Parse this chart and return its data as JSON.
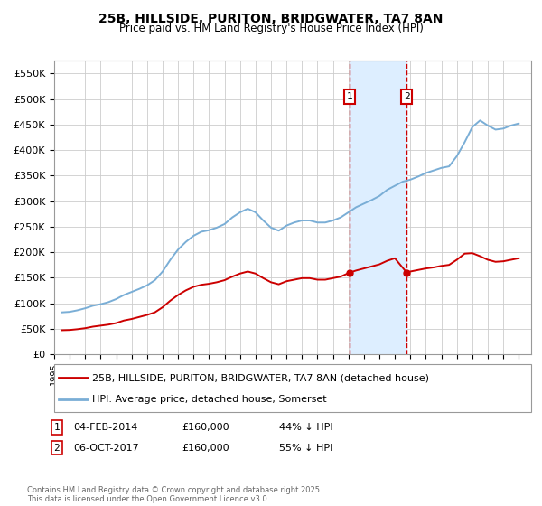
{
  "title": "25B, HILLSIDE, PURITON, BRIDGWATER, TA7 8AN",
  "subtitle": "Price paid vs. HM Land Registry's House Price Index (HPI)",
  "ylim": [
    0,
    575000
  ],
  "xlim_start": 1995.0,
  "xlim_end": 2025.8,
  "transaction1_date": 2014.09,
  "transaction1_price": 160000,
  "transaction2_date": 2017.76,
  "transaction2_price": 160000,
  "legend_red": "25B, HILLSIDE, PURITON, BRIDGWATER, TA7 8AN (detached house)",
  "legend_blue": "HPI: Average price, detached house, Somerset",
  "copyright": "Contains HM Land Registry data © Crown copyright and database right 2025.\nThis data is licensed under the Open Government Licence v3.0.",
  "red_color": "#cc0000",
  "blue_color": "#7aaed6",
  "shade_color": "#ddeeff",
  "grid_color": "#cccccc",
  "background_color": "#ffffff",
  "hpi_x": [
    1995.5,
    1996.0,
    1996.5,
    1997.0,
    1997.5,
    1998.0,
    1998.5,
    1999.0,
    1999.5,
    2000.0,
    2000.5,
    2001.0,
    2001.5,
    2002.0,
    2002.5,
    2003.0,
    2003.5,
    2004.0,
    2004.5,
    2005.0,
    2005.5,
    2006.0,
    2006.5,
    2007.0,
    2007.5,
    2008.0,
    2008.5,
    2009.0,
    2009.5,
    2010.0,
    2010.5,
    2011.0,
    2011.5,
    2012.0,
    2012.5,
    2013.0,
    2013.5,
    2014.0,
    2014.5,
    2015.0,
    2015.5,
    2016.0,
    2016.5,
    2017.0,
    2017.5,
    2018.0,
    2018.5,
    2019.0,
    2019.5,
    2020.0,
    2020.5,
    2021.0,
    2021.5,
    2022.0,
    2022.5,
    2023.0,
    2023.5,
    2024.0,
    2024.5,
    2025.0
  ],
  "hpi_y": [
    82000,
    83000,
    86000,
    90000,
    95000,
    98000,
    102000,
    108000,
    116000,
    122000,
    128000,
    135000,
    145000,
    162000,
    185000,
    205000,
    220000,
    232000,
    240000,
    243000,
    248000,
    255000,
    268000,
    278000,
    285000,
    278000,
    262000,
    248000,
    242000,
    252000,
    258000,
    262000,
    262000,
    258000,
    258000,
    262000,
    268000,
    278000,
    288000,
    295000,
    302000,
    310000,
    322000,
    330000,
    338000,
    342000,
    348000,
    355000,
    360000,
    365000,
    368000,
    388000,
    415000,
    445000,
    458000,
    448000,
    440000,
    442000,
    448000,
    452000
  ],
  "red_x": [
    1995.5,
    1996.0,
    1996.5,
    1997.0,
    1997.5,
    1998.0,
    1998.5,
    1999.0,
    1999.5,
    2000.0,
    2000.5,
    2001.0,
    2001.5,
    2002.0,
    2002.5,
    2003.0,
    2003.5,
    2004.0,
    2004.5,
    2005.0,
    2005.5,
    2006.0,
    2006.5,
    2007.0,
    2007.5,
    2008.0,
    2008.5,
    2009.0,
    2009.5,
    2010.0,
    2010.5,
    2011.0,
    2011.5,
    2012.0,
    2012.5,
    2013.0,
    2013.5,
    2014.09,
    2014.5,
    2015.0,
    2015.5,
    2016.0,
    2016.5,
    2017.0,
    2017.76,
    2018.0,
    2018.5,
    2019.0,
    2019.5,
    2020.0,
    2020.5,
    2021.0,
    2021.5,
    2022.0,
    2022.5,
    2023.0,
    2023.5,
    2024.0,
    2024.5,
    2025.0
  ],
  "red_y": [
    47000,
    47500,
    49000,
    51000,
    54000,
    56000,
    58000,
    61000,
    66000,
    69000,
    73000,
    77000,
    82000,
    92000,
    105000,
    116000,
    125000,
    132000,
    136000,
    138000,
    141000,
    145000,
    152000,
    158000,
    162000,
    158000,
    149000,
    141000,
    137000,
    143000,
    146000,
    149000,
    149000,
    146000,
    146000,
    149000,
    152000,
    160000,
    164000,
    168000,
    172000,
    176000,
    183000,
    188000,
    160000,
    162000,
    165000,
    168000,
    170000,
    173000,
    175000,
    185000,
    197000,
    198000,
    192000,
    185000,
    181000,
    182000,
    185000,
    188000
  ]
}
